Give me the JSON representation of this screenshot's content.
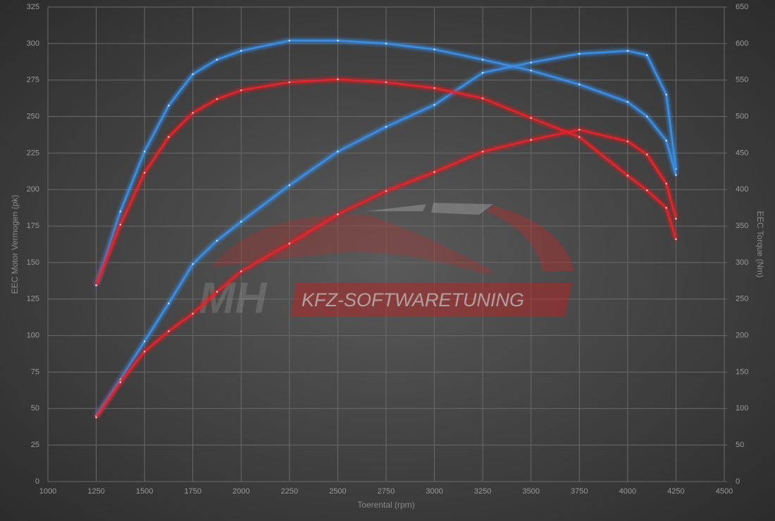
{
  "chart_data": {
    "type": "line",
    "x_label": "Toerental (rpm)",
    "y_label": "EEC Motor Vermogen (pk)",
    "y2_label": "EEC Torque (Nm)",
    "watermark": {
      "logo": "MH",
      "text": "KFZ-SOFTWARETUNING"
    },
    "x": [
      1250,
      1375,
      1500,
      1625,
      1750,
      1875,
      2000,
      2250,
      2500,
      2750,
      3000,
      3250,
      3500,
      3750,
      4000,
      4100,
      4200,
      4250
    ],
    "series": [
      {
        "color": "#3a8ee6",
        "axis": "y",
        "values": [
          45,
          70,
          96,
          122,
          149,
          165,
          178,
          203,
          226,
          243,
          258,
          280,
          287,
          293,
          295,
          292,
          265,
          214
        ]
      },
      {
        "color": "#3a8ee6",
        "axis": "y2",
        "values": [
          269,
          370,
          452,
          515,
          558,
          578,
          590,
          604,
          604,
          600,
          592,
          578,
          563,
          544,
          520,
          500,
          467,
          420
        ]
      },
      {
        "color": "#e0282a",
        "axis": "y",
        "values": [
          44,
          68,
          89,
          103,
          115,
          130,
          144,
          163,
          183,
          199,
          212,
          226,
          234,
          241,
          233,
          224,
          204,
          180
        ]
      },
      {
        "color": "#e0282a",
        "axis": "y2",
        "values": [
          269,
          352,
          423,
          472,
          505,
          524,
          536,
          547,
          551,
          547,
          539,
          525,
          498,
          472,
          419,
          399,
          375,
          332
        ]
      }
    ],
    "xlim": [
      1000,
      4500
    ],
    "xticks": [
      1000,
      1250,
      1500,
      1750,
      2000,
      2250,
      2500,
      2750,
      3000,
      3250,
      3500,
      3750,
      4000,
      4250,
      4500
    ],
    "ylim": [
      0,
      325
    ],
    "yticks": [
      0,
      25,
      50,
      75,
      100,
      125,
      150,
      175,
      200,
      225,
      250,
      275,
      300,
      325
    ],
    "y2lim": [
      0,
      650
    ],
    "y2ticks": [
      0,
      50,
      100,
      150,
      200,
      250,
      300,
      350,
      400,
      450,
      500,
      550,
      600,
      650
    ],
    "grid": true
  }
}
